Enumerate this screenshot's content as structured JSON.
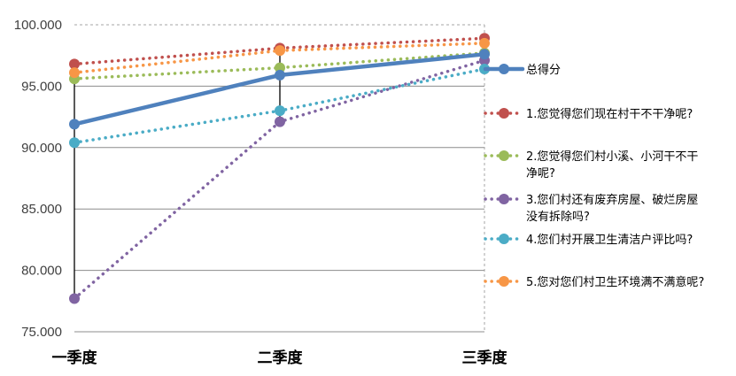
{
  "chart_data": {
    "type": "line",
    "categories": [
      "一季度",
      "二季度",
      "三季度"
    ],
    "ylim": [
      75,
      100
    ],
    "yticks": [
      "75.000",
      "80.000",
      "85.000",
      "90.000",
      "95.000",
      "100.000"
    ],
    "grid": true,
    "legend_position": "right",
    "series": [
      {
        "name": "总得分",
        "values": [
          91.9,
          95.9,
          97.6
        ],
        "color": "#4f81bd",
        "style": "solid"
      },
      {
        "name": "1.您觉得您们现在村干不干净呢?",
        "values": [
          96.8,
          98.1,
          98.9
        ],
        "color": "#c0504d",
        "style": "dotted"
      },
      {
        "name": "2.您觉得您们村小溪、小河干不干净呢?",
        "values": [
          95.6,
          96.5,
          97.7
        ],
        "color": "#9bbb59",
        "style": "dotted"
      },
      {
        "name": "3.您们村还有废弃房屋、破烂房屋没有拆除吗?",
        "values": [
          77.7,
          92.1,
          97.1
        ],
        "color": "#8064a2",
        "style": "dotted"
      },
      {
        "name": "4.您们村开展卫生清洁户评比吗?",
        "values": [
          90.4,
          93.0,
          96.4
        ],
        "color": "#4bacc6",
        "style": "dotted"
      },
      {
        "name": "5.您对您们村卫生环境满不满意呢?",
        "values": [
          96.1,
          97.9,
          98.5
        ],
        "color": "#f79646",
        "style": "dotted"
      }
    ],
    "legend_lines": [
      [
        "总得分"
      ],
      [
        "1.您觉得您们现在村干不干净呢?"
      ],
      [
        "2.您觉得您们村小溪、小河干不干",
        "净呢?"
      ],
      [
        "3.您们村还有废弃房屋、破烂房屋",
        "没有拆除吗?"
      ],
      [
        "4.您们村开展卫生清洁户评比吗?"
      ],
      [
        "5.您对您们村卫生环境满不满意呢?"
      ]
    ]
  }
}
